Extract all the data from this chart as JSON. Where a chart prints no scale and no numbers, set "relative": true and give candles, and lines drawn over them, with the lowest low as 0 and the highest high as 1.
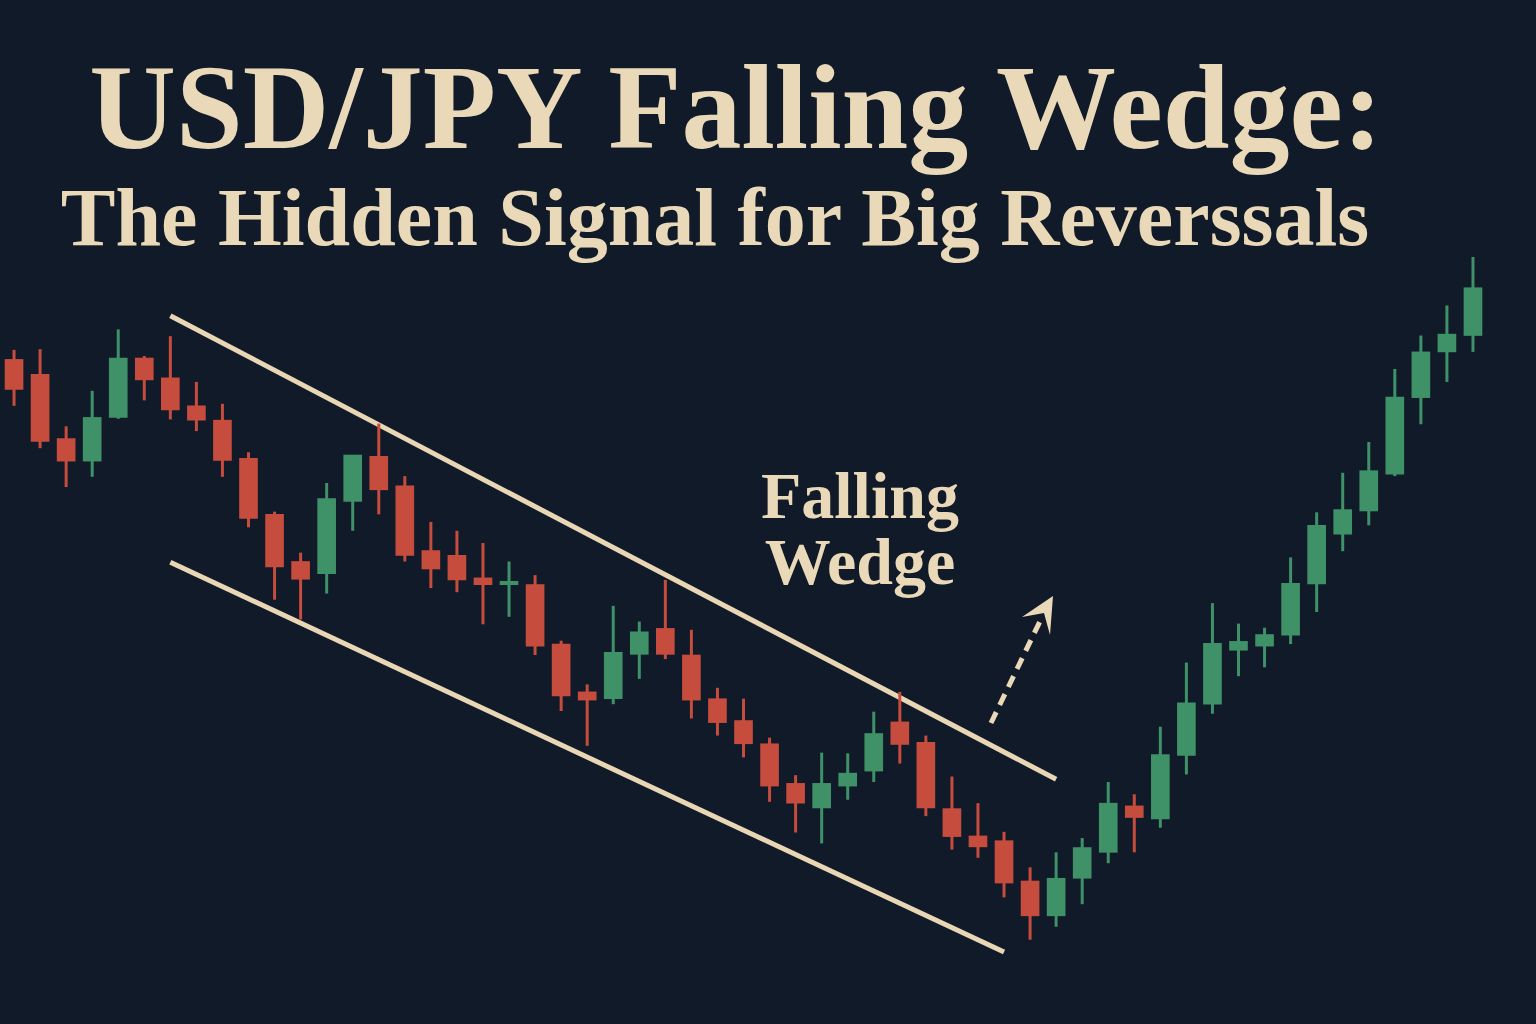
{
  "chart_data": {
    "type": "candlestick",
    "title": "USD/JPY Falling Wedge:",
    "subtitle": "The Hidden Signal for Big Reverssals",
    "relative": true,
    "categories": [
      null,
      null,
      null,
      null,
      null,
      null,
      null,
      null,
      null,
      null,
      null,
      null,
      null,
      null,
      null,
      null,
      null,
      null,
      null,
      null,
      null,
      null,
      null,
      null,
      null,
      null,
      null,
      null,
      null,
      null,
      null,
      null,
      null,
      null,
      null,
      null,
      null,
      null,
      null,
      null,
      null,
      null,
      null,
      null,
      null,
      null,
      null,
      null,
      null,
      null,
      null,
      null,
      null,
      null,
      null,
      null,
      null
    ],
    "ohlc": [
      [
        0.85,
        0.864,
        0.782,
        0.806
      ],
      [
        0.828,
        0.865,
        0.72,
        0.73
      ],
      [
        0.734,
        0.752,
        0.663,
        0.701
      ],
      [
        0.701,
        0.804,
        0.678,
        0.765
      ],
      [
        0.765,
        0.894,
        0.763,
        0.852
      ],
      [
        0.852,
        0.855,
        0.79,
        0.82
      ],
      [
        0.823,
        0.884,
        0.762,
        0.776
      ],
      [
        0.782,
        0.817,
        0.745,
        0.761
      ],
      [
        0.761,
        0.785,
        0.678,
        0.702
      ],
      [
        0.705,
        0.714,
        0.604,
        0.617
      ],
      [
        0.623,
        0.627,
        0.498,
        0.546
      ],
      [
        0.554,
        0.567,
        0.469,
        0.528
      ],
      [
        0.536,
        0.669,
        0.507,
        0.646
      ],
      [
        0.642,
        0.71,
        0.599,
        0.71
      ],
      [
        0.708,
        0.756,
        0.623,
        0.659
      ],
      [
        0.665,
        0.679,
        0.554,
        0.563
      ],
      [
        0.57,
        0.612,
        0.515,
        0.543
      ],
      [
        0.563,
        0.599,
        0.509,
        0.527
      ],
      [
        0.53,
        0.581,
        0.462,
        0.52
      ],
      [
        0.52,
        0.554,
        0.473,
        0.525
      ],
      [
        0.52,
        0.534,
        0.417,
        0.43
      ],
      [
        0.433,
        0.438,
        0.335,
        0.357
      ],
      [
        0.363,
        0.374,
        0.284,
        0.351
      ],
      [
        0.353,
        0.489,
        0.345,
        0.421
      ],
      [
        0.418,
        0.466,
        0.382,
        0.451
      ],
      [
        0.456,
        0.527,
        0.411,
        0.418
      ],
      [
        0.417,
        0.454,
        0.324,
        0.351
      ],
      [
        0.353,
        0.369,
        0.299,
        0.318
      ],
      [
        0.321,
        0.353,
        0.267,
        0.287
      ],
      [
        0.287,
        0.296,
        0.202,
        0.225
      ],
      [
        0.229,
        0.241,
        0.157,
        0.2
      ],
      [
        0.193,
        0.274,
        0.141,
        0.229
      ],
      [
        0.225,
        0.273,
        0.205,
        0.244
      ],
      [
        0.247,
        0.334,
        0.231,
        0.302
      ],
      [
        0.319,
        0.363,
        0.258,
        0.286
      ],
      [
        0.289,
        0.299,
        0.181,
        0.193
      ],
      [
        0.192,
        0.239,
        0.132,
        0.151
      ],
      [
        0.152,
        0.2,
        0.12,
        0.136
      ],
      [
        0.145,
        0.158,
        0.062,
        0.083
      ],
      [
        0.086,
        0.106,
        0,
        0.035
      ],
      [
        0.035,
        0.128,
        0.019,
        0.09
      ],
      [
        0.09,
        0.149,
        0.052,
        0.135
      ],
      [
        0.128,
        0.231,
        0.112,
        0.2
      ],
      [
        0.196,
        0.213,
        0.128,
        0.179
      ],
      [
        0.177,
        0.312,
        0.164,
        0.271
      ],
      [
        0.27,
        0.406,
        0.242,
        0.347
      ],
      [
        0.345,
        0.493,
        0.331,
        0.434
      ],
      [
        0.424,
        0.463,
        0.386,
        0.437
      ],
      [
        0.43,
        0.457,
        0.399,
        0.447
      ],
      [
        0.446,
        0.56,
        0.433,
        0.522
      ],
      [
        0.521,
        0.626,
        0.48,
        0.607
      ],
      [
        0.594,
        0.684,
        0.569,
        0.63
      ],
      [
        0.628,
        0.729,
        0.607,
        0.687
      ],
      [
        0.682,
        0.836,
        0.679,
        0.795
      ],
      [
        0.794,
        0.885,
        0.755,
        0.861
      ],
      [
        0.861,
        0.929,
        0.817,
        0.887
      ],
      [
        0.885,
        1,
        0.861,
        0.955
      ]
    ],
    "colors": [
      "#c64c3d",
      "#c64c3d",
      "#c64c3d",
      "#3f9168",
      "#3f9168",
      "#c64c3d",
      "#c64c3d",
      "#c64c3d",
      "#c64c3d",
      "#c64c3d",
      "#c64c3d",
      "#c64c3d",
      "#3f9168",
      "#3f9168",
      "#c64c3d",
      "#c64c3d",
      "#c64c3d",
      "#c64c3d",
      "#c64c3d",
      "#3f9168",
      "#c64c3d",
      "#c64c3d",
      "#c64c3d",
      "#3f9168",
      "#3f9168",
      "#c64c3d",
      "#c64c3d",
      "#c64c3d",
      "#c64c3d",
      "#c64c3d",
      "#c64c3d",
      "#3f9168",
      "#3f9168",
      "#3f9168",
      "#c64c3d",
      "#c64c3d",
      "#c64c3d",
      "#c64c3d",
      "#c64c3d",
      "#c64c3d",
      "#3f9168",
      "#3f9168",
      "#3f9168",
      "#c64c3d",
      "#3f9168",
      "#3f9168",
      "#3f9168",
      "#3f9168",
      "#3f9168",
      "#3f9168",
      "#3f9168",
      "#3f9168",
      "#3f9168",
      "#3f9168",
      "#3f9168",
      "#3f9168",
      "#3f9168"
    ],
    "series": [
      {
        "type": "line",
        "color": "#e8d6b4",
        "values": [
          null,
          null,
          null,
          null,
          null,
          null,
          0.914,
          null,
          null,
          null,
          null,
          null,
          null,
          null,
          null,
          null,
          null,
          null,
          null,
          null,
          null,
          null,
          null,
          null,
          null,
          null,
          null,
          null,
          null,
          null,
          null,
          null,
          null,
          null,
          null,
          null,
          null,
          null,
          null,
          null,
          0.235,
          null,
          null,
          null,
          null,
          null,
          null,
          null,
          null,
          null,
          null,
          null,
          null,
          null,
          null,
          null,
          null
        ]
      },
      {
        "type": "line",
        "color": "#e8d6b4",
        "values": [
          null,
          null,
          null,
          null,
          null,
          null,
          0.553,
          null,
          null,
          null,
          null,
          null,
          null,
          null,
          null,
          null,
          null,
          null,
          null,
          null,
          null,
          null,
          null,
          null,
          null,
          null,
          null,
          null,
          null,
          null,
          null,
          null,
          null,
          null,
          null,
          null,
          null,
          null,
          -0.018,
          null,
          null,
          null,
          null,
          null,
          null,
          null,
          null,
          null,
          null,
          null,
          null,
          null,
          null,
          null,
          null,
          null,
          null
        ]
      }
    ],
    "annotations": [
      "Falling Wedge"
    ]
  }
}
